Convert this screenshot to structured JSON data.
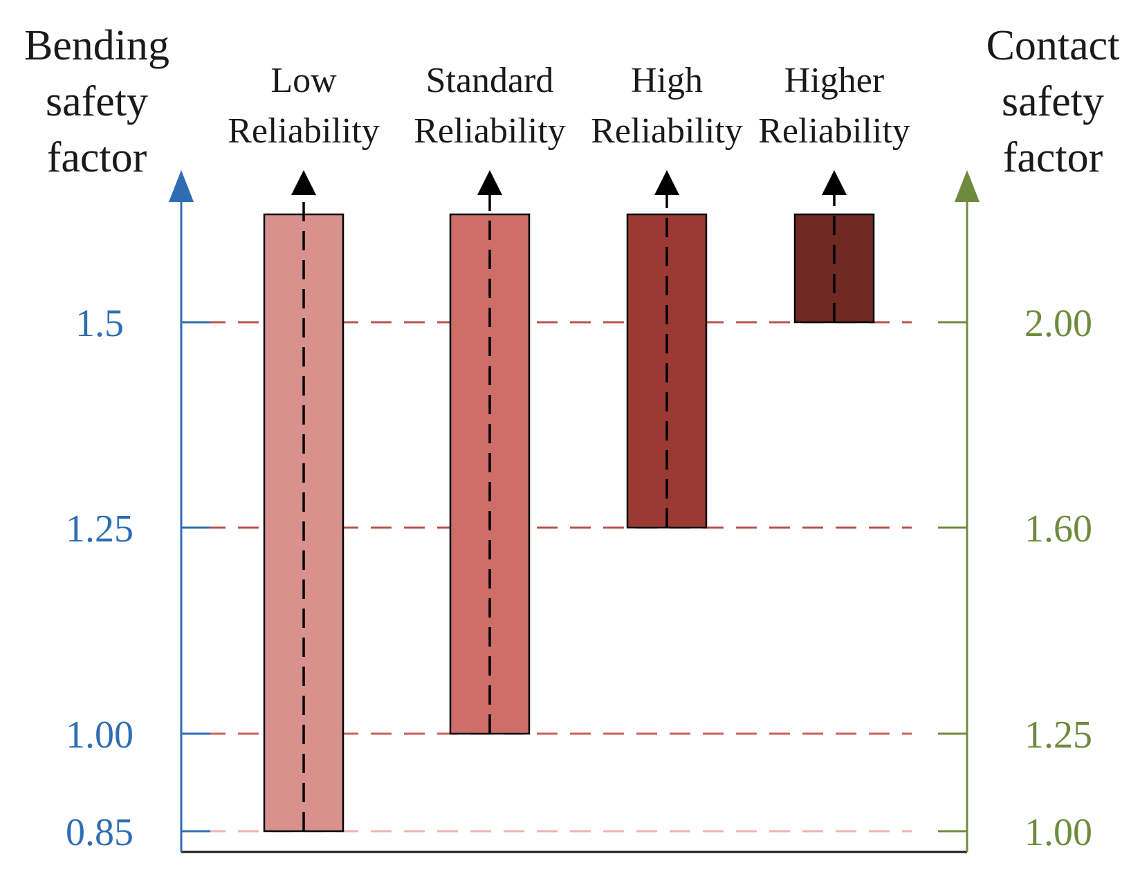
{
  "chart_data": {
    "type": "bar",
    "title": "",
    "left_axis": {
      "label_lines": [
        "Bending",
        "safety",
        "factor"
      ],
      "color": "#2e6db4",
      "ticks": [
        {
          "value": 0.85,
          "label": "0.85"
        },
        {
          "value": 1.0,
          "label": "1.00"
        },
        {
          "value": 1.25,
          "label": "1.25"
        },
        {
          "value": 1.5,
          "label": "1.5"
        }
      ]
    },
    "right_axis": {
      "label_lines": [
        "Contact",
        "safety",
        "factor"
      ],
      "color": "#6e8b3d",
      "ticks": [
        {
          "value": 1.0,
          "label": "1.00"
        },
        {
          "value": 1.25,
          "label": "1.25"
        },
        {
          "value": 1.6,
          "label": "1.60"
        },
        {
          "value": 2.0,
          "label": "2.00"
        }
      ]
    },
    "reference_lines": [
      {
        "bending": 1.5,
        "contact": 2.0,
        "color": "#b8534f"
      },
      {
        "bending": 1.25,
        "contact": 1.6,
        "color": "#b8534f"
      },
      {
        "bending": 1.0,
        "contact": 1.25,
        "color": "#c9615c"
      },
      {
        "bending": 0.85,
        "contact": 1.0,
        "color": "#f0b3b0"
      }
    ],
    "categories": [
      {
        "label_lines": [
          "Low",
          "Reliability"
        ],
        "min_bending": 0.85,
        "min_contact": 1.0,
        "open_ended": true,
        "color": "#d9918e"
      },
      {
        "label_lines": [
          "Standard",
          "Reliability"
        ],
        "min_bending": 1.0,
        "min_contact": 1.25,
        "open_ended": true,
        "color": "#cd6e68"
      },
      {
        "label_lines": [
          "High",
          "Reliability"
        ],
        "min_bending": 1.25,
        "min_contact": 1.6,
        "open_ended": true,
        "color": "#9b3a33"
      },
      {
        "label_lines": [
          "Higher",
          "Reliability"
        ],
        "min_bending": 1.5,
        "min_contact": 2.0,
        "open_ended": true,
        "color": "#6f2a24"
      }
    ]
  }
}
